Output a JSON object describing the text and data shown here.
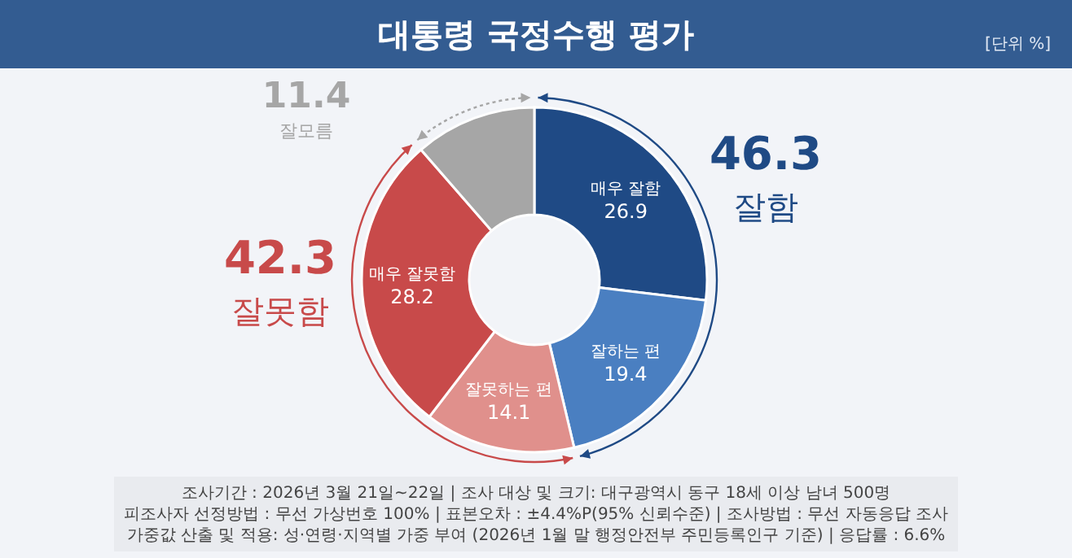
{
  "chart_data": {
    "type": "donut",
    "title": "대통령 국정수행 평가",
    "subtitle": "[단위 %]",
    "categories": [
      "매우 잘함",
      "잘하는 편",
      "잘못하는 편",
      "매우 잘못함",
      "잘모름"
    ],
    "values": [
      26.9,
      19.4,
      14.1,
      28.2,
      11.4
    ],
    "colors": [
      "#1f4a85",
      "#4a7fc1",
      "#e0908c",
      "#c84a4a",
      "#a6a6a6"
    ],
    "data_labels": true,
    "annotations": [
      "46.3",
      "잘함",
      "42.3",
      "잘못함",
      "조사기간 : 2026년 3월 21일~22일 | 조사 대상 및 크기: 대구광역시 동구 18세 이상 남녀 500명",
      "피조사자 선정방법 : 무선 가상번호 100% | 표본오차 : ±4.4%P(95% 신뢰수준) | 조사방법 : 무선 자동응답 조사",
      "가중값 산출 및 적용: 성·연령·지역별 가중 부여 (2026년 1월 말 행정안전부 주민등록인구 기준) | 응답률 : 6.6%"
    ]
  }
}
